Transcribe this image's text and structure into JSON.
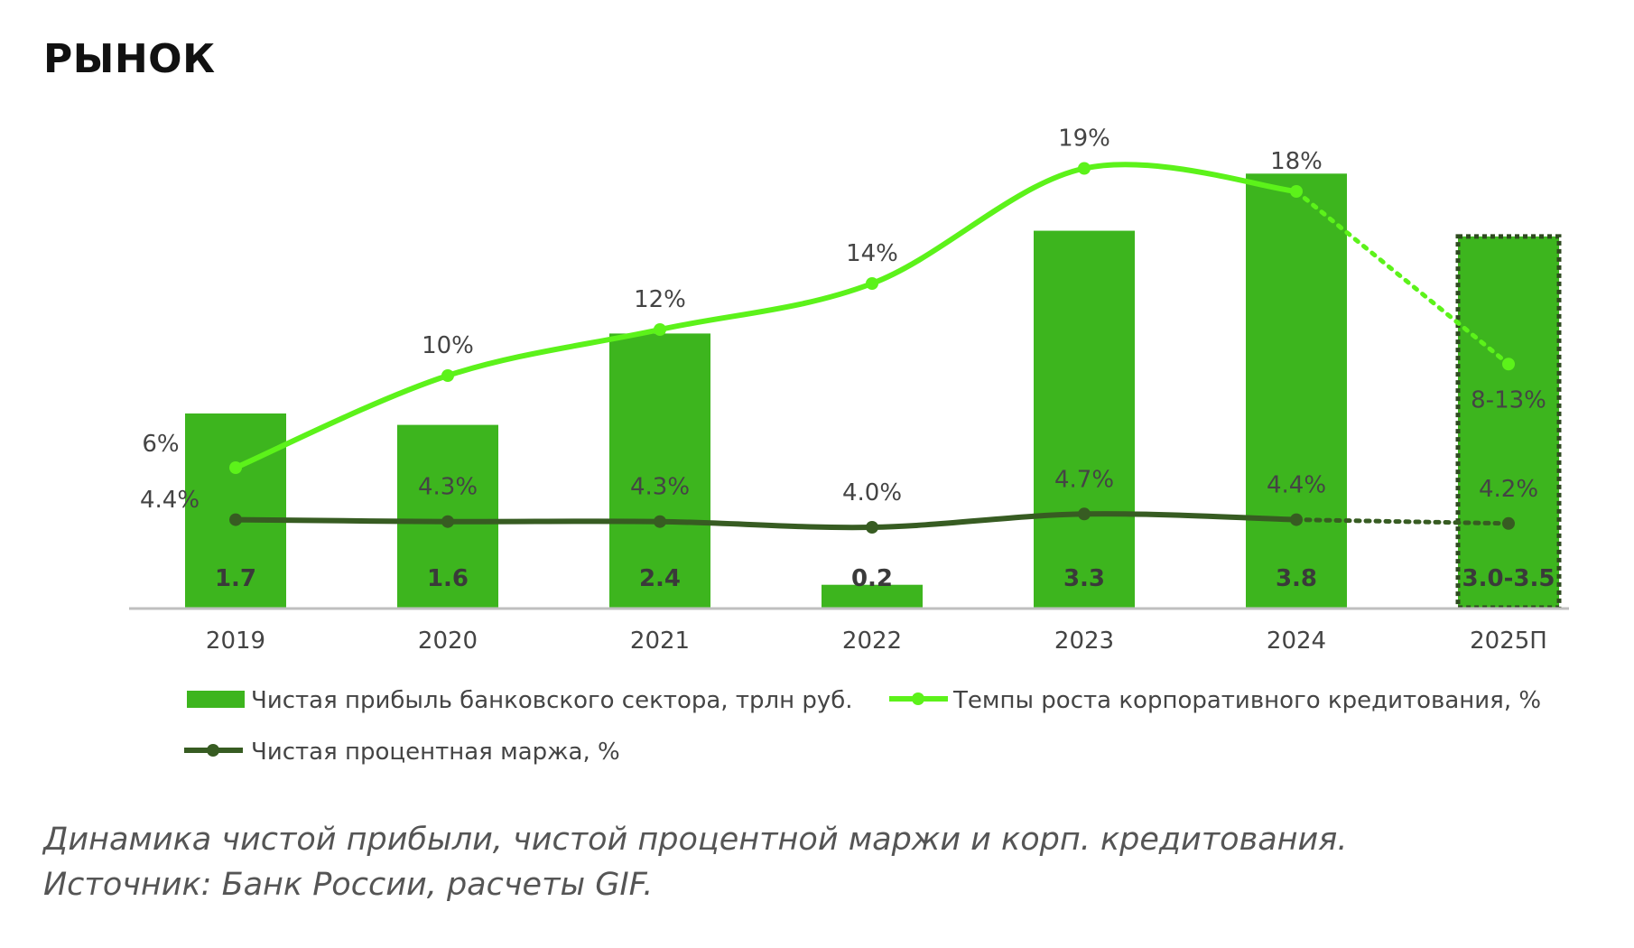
{
  "header": {
    "title": "РЫНОК"
  },
  "caption": {
    "line1": "Динамика чистой прибыли, чистой процентной маржи и корп. кредитования.",
    "line2": "Источник: Банк России, расчеты GIF."
  },
  "colors": {
    "bar": "#3db51e",
    "growth_line": "#5cf21a",
    "margin_line": "#375c22",
    "axis": "#bfbfbf",
    "label": "#444444",
    "bar_label": "#3a3a3a",
    "forecast_border": "#2e4a1f"
  },
  "chart_data": {
    "type": "bar",
    "categories": [
      "2019",
      "2020",
      "2021",
      "2022",
      "2023",
      "2024",
      "2025П"
    ],
    "forecast_index": 6,
    "series": [
      {
        "name": "Чистая прибыль банковского сектора, трлн руб.",
        "type": "bar",
        "values": [
          1.7,
          1.6,
          2.4,
          0.2,
          3.3,
          3.8,
          3.25
        ],
        "labels": [
          "1.7",
          "1.6",
          "2.4",
          "0.2",
          "3.3",
          "3.8",
          "3.0-3.5"
        ]
      },
      {
        "name": "Темпы роста корпоративного кредитования, %",
        "type": "line",
        "values": [
          6,
          10,
          12,
          14,
          19,
          18,
          10.5
        ],
        "labels": [
          "6%",
          "10%",
          "12%",
          "14%",
          "19%",
          "18%",
          "8-13%"
        ]
      },
      {
        "name": "Чистая процентная маржа, %",
        "type": "line",
        "values": [
          4.4,
          4.3,
          4.3,
          4.0,
          4.7,
          4.4,
          4.2
        ],
        "labels": [
          "4.4%",
          "4.3%",
          "4.3%",
          "4.0%",
          "4.7%",
          "4.4%",
          "4.2%"
        ]
      }
    ],
    "legend_position": "bottom",
    "grid": false
  }
}
